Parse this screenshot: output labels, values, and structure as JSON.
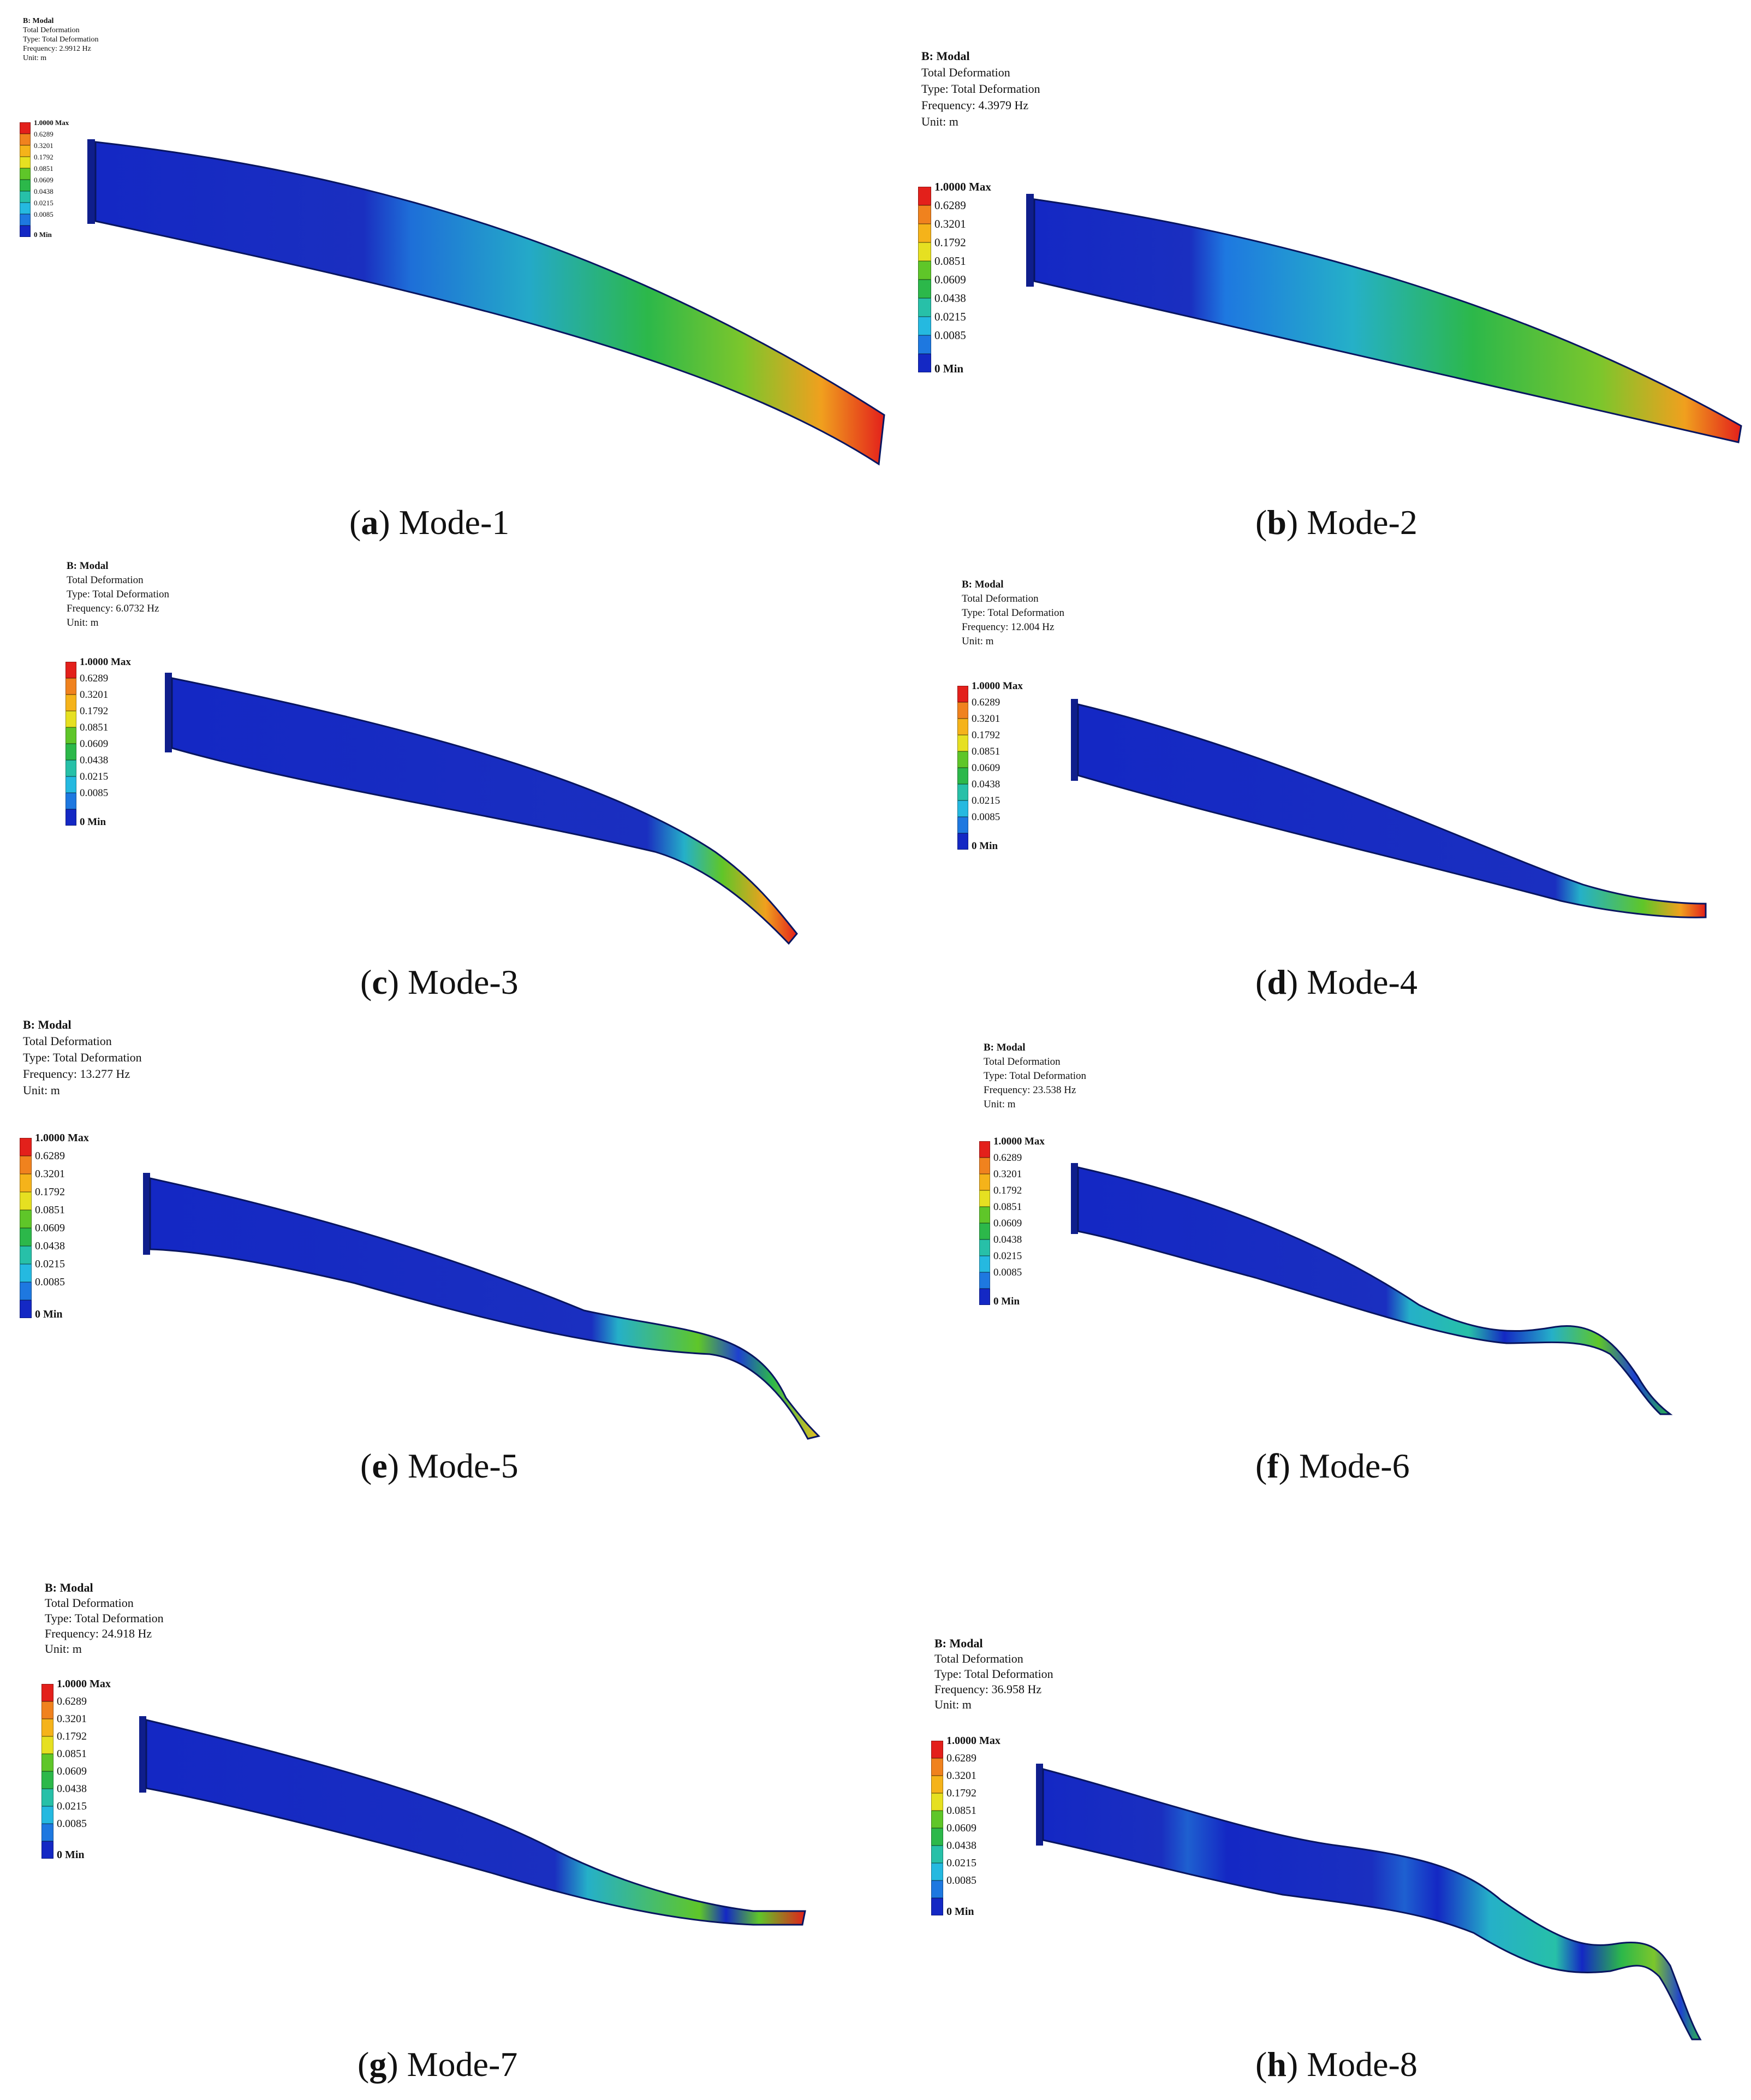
{
  "legend_levels": [
    {
      "label": "1.0000 Max",
      "color": "#e3201b",
      "bold": true
    },
    {
      "label": "0.6289",
      "color": "#f0821e",
      "bold": false
    },
    {
      "label": "0.3201",
      "color": "#f5b31a",
      "bold": false
    },
    {
      "label": "0.1792",
      "color": "#e6e021",
      "bold": false
    },
    {
      "label": "0.0851",
      "color": "#5fc629",
      "bold": false
    },
    {
      "label": "0.0609",
      "color": "#2cb84a",
      "bold": false
    },
    {
      "label": "0.0438",
      "color": "#27c0a8",
      "bold": false
    },
    {
      "label": "0.0215",
      "color": "#25b9e0",
      "bold": false
    },
    {
      "label": "0.0085",
      "color": "#1e78e0",
      "bold": false
    },
    {
      "label": "0 Min",
      "color": "#1428c4",
      "bold": true
    }
  ],
  "panels": [
    {
      "id": "a",
      "info": {
        "title": "B: Modal",
        "result": "Total Deformation",
        "type": "Type: Total Deformation",
        "frequency": "Frequency: 2.9912 Hz",
        "unit": "Unit: m"
      },
      "caption_letter": "a",
      "caption_text": " Mode-1"
    },
    {
      "id": "b",
      "info": {
        "title": "B: Modal",
        "result": "Total Deformation",
        "type": "Type: Total Deformation",
        "frequency": "Frequency: 4.3979 Hz",
        "unit": "Unit: m"
      },
      "caption_letter": "b",
      "caption_text": " Mode-2"
    },
    {
      "id": "c",
      "info": {
        "title": "B: Modal",
        "result": "Total Deformation",
        "type": "Type: Total Deformation",
        "frequency": "Frequency: 6.0732 Hz",
        "unit": "Unit: m"
      },
      "caption_letter": "c",
      "caption_text": " Mode-3"
    },
    {
      "id": "d",
      "info": {
        "title": "B: Modal",
        "result": "Total Deformation",
        "type": "Type: Total Deformation",
        "frequency": "Frequency: 12.004 Hz",
        "unit": "Unit: m"
      },
      "caption_letter": "d",
      "caption_text": " Mode-4"
    },
    {
      "id": "e",
      "info": {
        "title": "B: Modal",
        "result": "Total Deformation",
        "type": "Type: Total Deformation",
        "frequency": "Frequency: 13.277 Hz",
        "unit": "Unit: m"
      },
      "caption_letter": "e",
      "caption_text": " Mode-5"
    },
    {
      "id": "f",
      "info": {
        "title": "B: Modal",
        "result": "Total Deformation",
        "type": "Type: Total Deformation",
        "frequency": "Frequency: 23.538 Hz",
        "unit": "Unit: m"
      },
      "caption_letter": "f",
      "caption_text": " Mode-6"
    },
    {
      "id": "g",
      "info": {
        "title": "B: Modal",
        "result": "Total Deformation",
        "type": "Type: Total Deformation",
        "frequency": "Frequency: 24.918 Hz",
        "unit": "Unit: m"
      },
      "caption_letter": "g",
      "caption_text": " Mode-7"
    },
    {
      "id": "h",
      "info": {
        "title": "B: Modal",
        "result": "Total Deformation",
        "type": "Type: Total Deformation",
        "frequency": "Frequency: 36.958 Hz",
        "unit": "Unit: m"
      },
      "caption_letter": "h",
      "caption_text": " Mode-8"
    }
  ]
}
